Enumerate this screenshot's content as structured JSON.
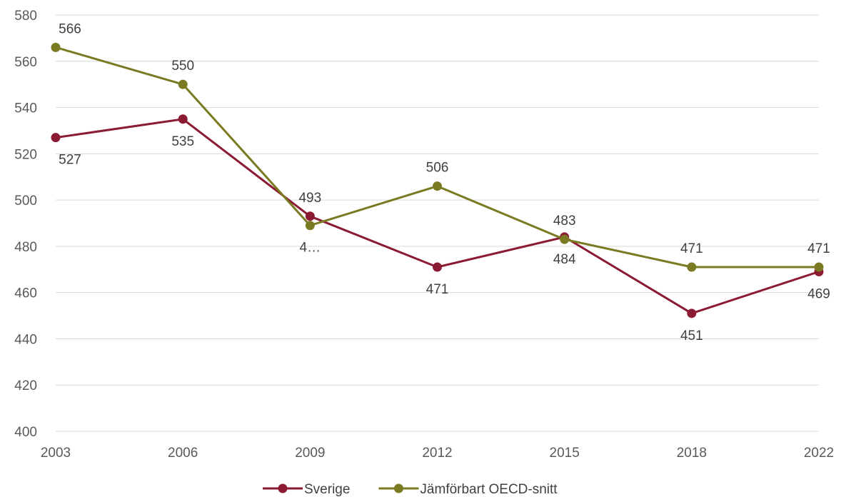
{
  "chart_data": {
    "type": "line",
    "categories": [
      "2003",
      "2006",
      "2009",
      "2012",
      "2015",
      "2018",
      "2022"
    ],
    "ylim": [
      400,
      580
    ],
    "yticks": [
      "400",
      "420",
      "440",
      "460",
      "480",
      "500",
      "520",
      "540",
      "560",
      "580"
    ],
    "grid": true,
    "legend_position": "bottom",
    "series": [
      {
        "name": "Sverige",
        "color": "#8b1a33",
        "values": [
          527,
          535,
          493,
          471,
          484,
          451,
          469
        ],
        "labels": [
          "527",
          "535",
          "493",
          "471",
          "484",
          "451",
          "469"
        ]
      },
      {
        "name": "Jämförbart OECD-snitt",
        "color": "#7a7a22",
        "values": [
          566,
          550,
          489,
          506,
          483,
          471,
          471
        ],
        "labels": [
          "566",
          "550",
          "4…",
          "506",
          "483",
          "471",
          "471"
        ]
      }
    ]
  }
}
